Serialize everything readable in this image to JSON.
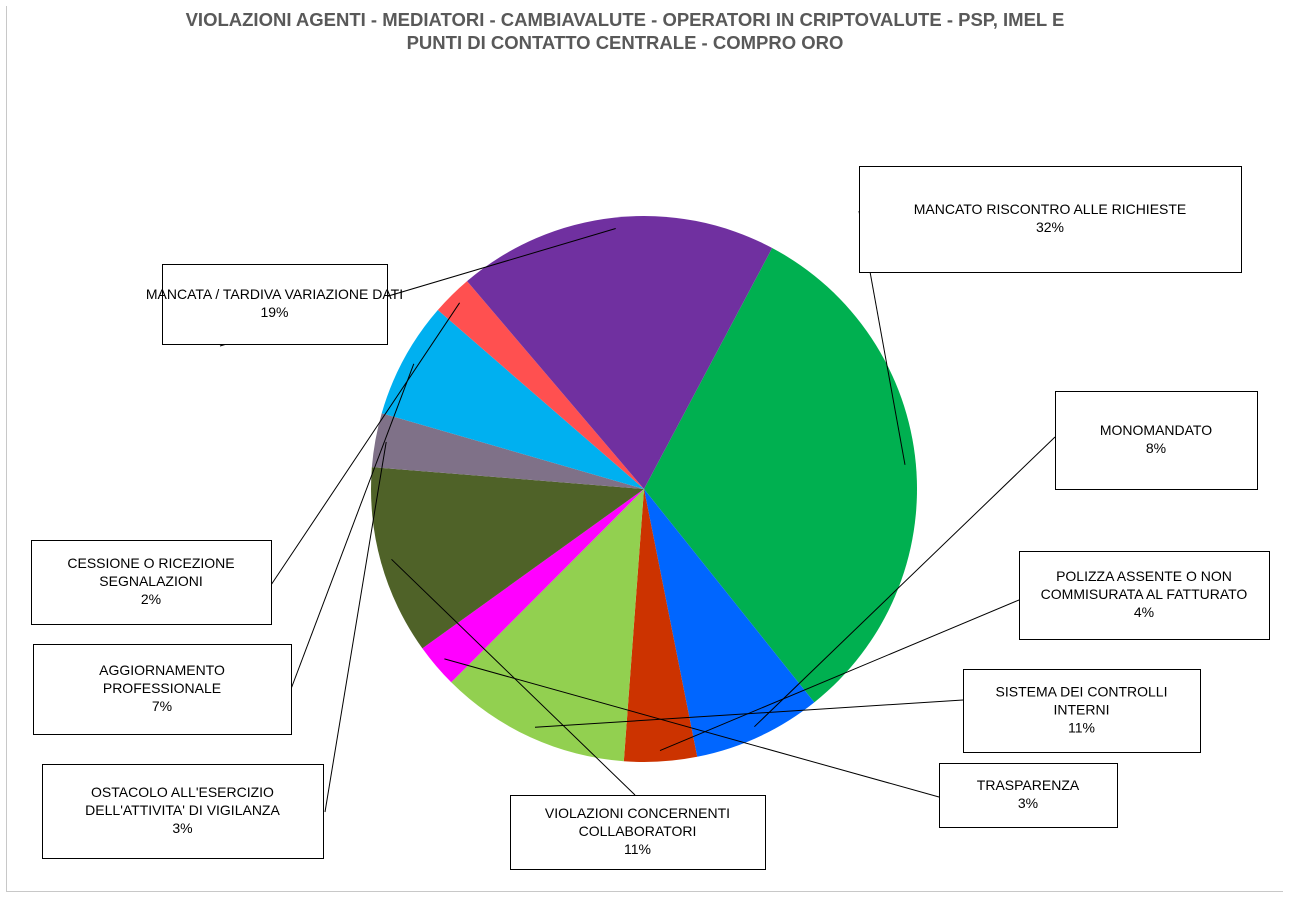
{
  "chart_data": {
    "type": "pie",
    "title": [
      "VIOLAZIONI AGENTI - MEDIATORI - CAMBIAVALUTE - OPERATORI IN CRIPTOVALUTE - PSP, IMEL E",
      "PUNTI DI CONTATTO CENTRALE - COMPRO ORO"
    ],
    "slices": [
      {
        "label": [
          "MANCATO RISCONTRO ALLE RICHIESTE"
        ],
        "pct_label": "32%",
        "value": 31.5,
        "color": "#00B050"
      },
      {
        "label": [
          "MONOMANDATO"
        ],
        "pct_label": "8%",
        "value": 7.6,
        "color": "#0066FF"
      },
      {
        "label": [
          "POLIZZA ASSENTE O NON",
          "COMMISURATA AL FATTURATO"
        ],
        "pct_label": "4%",
        "value": 4.3,
        "color": "#CC3300"
      },
      {
        "label": [
          "SISTEMA DEI CONTROLLI",
          "INTERNI"
        ],
        "pct_label": "11%",
        "value": 11.3,
        "color": "#92D050"
      },
      {
        "label": [
          "TRASPARENZA"
        ],
        "pct_label": "3%",
        "value": 2.6,
        "color": "#FF00FF"
      },
      {
        "label": [
          "VIOLAZIONI CONCERNENTI",
          "COLLABORATORI"
        ],
        "pct_label": "11%",
        "value": 11.2,
        "color": "#4F6228"
      },
      {
        "label": [
          "OSTACOLO ALL'ESERCIZIO",
          "DELL'ATTIVITA' DI VIGILANZA"
        ],
        "pct_label": "3%",
        "value": 3.2,
        "color": "#7F7188"
      },
      {
        "label": [
          "AGGIORNAMENTO",
          "PROFESSIONALE"
        ],
        "pct_label": "7%",
        "value": 6.9,
        "color": "#00B0F0"
      },
      {
        "label": [
          "CESSIONE O RICEZIONE",
          "SEGNALAZIONI"
        ],
        "pct_label": "2%",
        "value": 2.4,
        "color": "#FF5050"
      },
      {
        "label": [
          "MANCATA / TARDIVA VARIAZIONE DATI"
        ],
        "pct_label": "19%",
        "value": 19.0,
        "color": "#7030A0"
      }
    ]
  }
}
